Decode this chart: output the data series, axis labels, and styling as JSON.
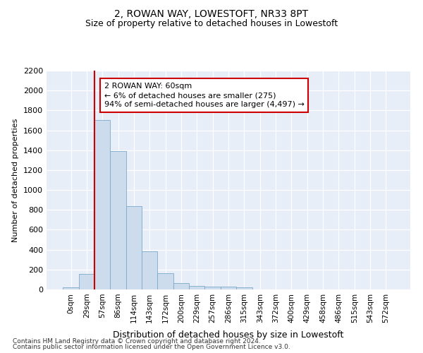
{
  "title": "2, ROWAN WAY, LOWESTOFT, NR33 8PT",
  "subtitle": "Size of property relative to detached houses in Lowestoft",
  "xlabel": "Distribution of detached houses by size in Lowestoft",
  "ylabel": "Number of detached properties",
  "bar_values": [
    20,
    155,
    1700,
    1390,
    835,
    385,
    165,
    65,
    38,
    30,
    28,
    20,
    0,
    0,
    0,
    0,
    0,
    0,
    0,
    0,
    0
  ],
  "bar_labels": [
    "0sqm",
    "29sqm",
    "57sqm",
    "86sqm",
    "114sqm",
    "143sqm",
    "172sqm",
    "200sqm",
    "229sqm",
    "257sqm",
    "286sqm",
    "315sqm",
    "343sqm",
    "372sqm",
    "400sqm",
    "429sqm",
    "458sqm",
    "486sqm",
    "515sqm",
    "543sqm",
    "572sqm"
  ],
  "bar_color": "#ccdcec",
  "bar_edge_color": "#7aaaca",
  "vline_color": "#cc0000",
  "vline_index": 1.5,
  "annotation_text": "2 ROWAN WAY: 60sqm\n← 6% of detached houses are smaller (275)\n94% of semi-detached houses are larger (4,497) →",
  "annotation_box_facecolor": "#ffffff",
  "annotation_box_edgecolor": "#cc0000",
  "ylim": [
    0,
    2200
  ],
  "yticks": [
    0,
    200,
    400,
    600,
    800,
    1000,
    1200,
    1400,
    1600,
    1800,
    2000,
    2200
  ],
  "bg_color": "#e8eef8",
  "grid_color": "#ffffff",
  "footer_line1": "Contains HM Land Registry data © Crown copyright and database right 2024.",
  "footer_line2": "Contains public sector information licensed under the Open Government Licence v3.0.",
  "title_fontsize": 10,
  "subtitle_fontsize": 9,
  "ylabel_fontsize": 8,
  "xlabel_fontsize": 9,
  "tick_fontsize": 7.5,
  "ytick_fontsize": 8,
  "footer_fontsize": 6.5,
  "ann_fontsize": 8
}
